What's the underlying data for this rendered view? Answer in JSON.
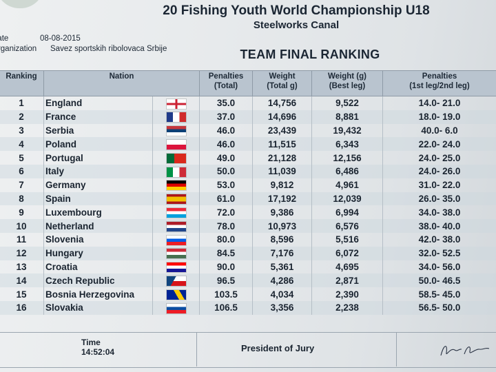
{
  "header": {
    "title": "20 Fishing Youth World Championship U18",
    "subtitle": "Steelworks Canal",
    "date_label": "Date",
    "date_value": "08-08-2015",
    "org_label": "Organization",
    "org_value": "Savez sportskih ribolovaca Srbije",
    "doc_title": "TEAM FINAL RANKING"
  },
  "table": {
    "columns": {
      "ranking": "Ranking",
      "nation": "Nation",
      "penalties_total_1": "Penalties",
      "penalties_total_2": "(Total)",
      "weight_total_1": "Weight",
      "weight_total_2": "(Total g)",
      "weight_best_1": "Weight (g)",
      "weight_best_2": "(Best leg)",
      "penalties_legs_1": "Penalties",
      "penalties_legs_2": "(1st leg/2nd leg)"
    },
    "rows": [
      {
        "rank": "1",
        "nation": "England",
        "pen": "35.0",
        "weight": "14,756",
        "best": "9,522",
        "legs": "14.0- 21.0",
        "flag": "england"
      },
      {
        "rank": "2",
        "nation": "France",
        "pen": "37.0",
        "weight": "14,696",
        "best": "8,881",
        "legs": "18.0- 19.0",
        "flag": "france"
      },
      {
        "rank": "3",
        "nation": "Serbia",
        "pen": "46.0",
        "weight": "23,439",
        "best": "19,432",
        "legs": "40.0-  6.0",
        "flag": "serbia"
      },
      {
        "rank": "4",
        "nation": "Poland",
        "pen": "46.0",
        "weight": "11,515",
        "best": "6,343",
        "legs": "22.0- 24.0",
        "flag": "poland"
      },
      {
        "rank": "5",
        "nation": "Portugal",
        "pen": "49.0",
        "weight": "21,128",
        "best": "12,156",
        "legs": "24.0- 25.0",
        "flag": "portugal"
      },
      {
        "rank": "6",
        "nation": "Italy",
        "pen": "50.0",
        "weight": "11,039",
        "best": "6,486",
        "legs": "24.0- 26.0",
        "flag": "italy"
      },
      {
        "rank": "7",
        "nation": "Germany",
        "pen": "53.0",
        "weight": "9,812",
        "best": "4,961",
        "legs": "31.0- 22.0",
        "flag": "germany"
      },
      {
        "rank": "8",
        "nation": "Spain",
        "pen": "61.0",
        "weight": "17,192",
        "best": "12,039",
        "legs": "26.0- 35.0",
        "flag": "spain"
      },
      {
        "rank": "9",
        "nation": "Luxembourg",
        "pen": "72.0",
        "weight": "9,386",
        "best": "6,994",
        "legs": "34.0- 38.0",
        "flag": "luxembourg"
      },
      {
        "rank": "10",
        "nation": "Netherland",
        "pen": "78.0",
        "weight": "10,973",
        "best": "6,576",
        "legs": "38.0- 40.0",
        "flag": "netherlands"
      },
      {
        "rank": "11",
        "nation": "Slovenia",
        "pen": "80.0",
        "weight": "8,596",
        "best": "5,516",
        "legs": "42.0- 38.0",
        "flag": "slovenia"
      },
      {
        "rank": "12",
        "nation": "Hungary",
        "pen": "84.5",
        "weight": "7,176",
        "best": "6,072",
        "legs": "32.0- 52.5",
        "flag": "hungary"
      },
      {
        "rank": "13",
        "nation": "Croatia",
        "pen": "90.0",
        "weight": "5,361",
        "best": "4,695",
        "legs": "34.0- 56.0",
        "flag": "croatia"
      },
      {
        "rank": "14",
        "nation": "Czech Republic",
        "pen": "96.5",
        "weight": "4,286",
        "best": "2,871",
        "legs": "50.0- 46.5",
        "flag": "czech"
      },
      {
        "rank": "15",
        "nation": "Bosnia Herzegovina",
        "pen": "103.5",
        "weight": "4,034",
        "best": "2,390",
        "legs": "58.5- 45.0",
        "flag": "bosnia"
      },
      {
        "rank": "16",
        "nation": "Slovakia",
        "pen": "106.5",
        "weight": "3,356",
        "best": "2,238",
        "legs": "56.5- 50.0",
        "flag": "slovakia"
      }
    ]
  },
  "footer": {
    "time_label": "Time",
    "time_value": "14:52:04",
    "president_label": "President of Jury"
  }
}
